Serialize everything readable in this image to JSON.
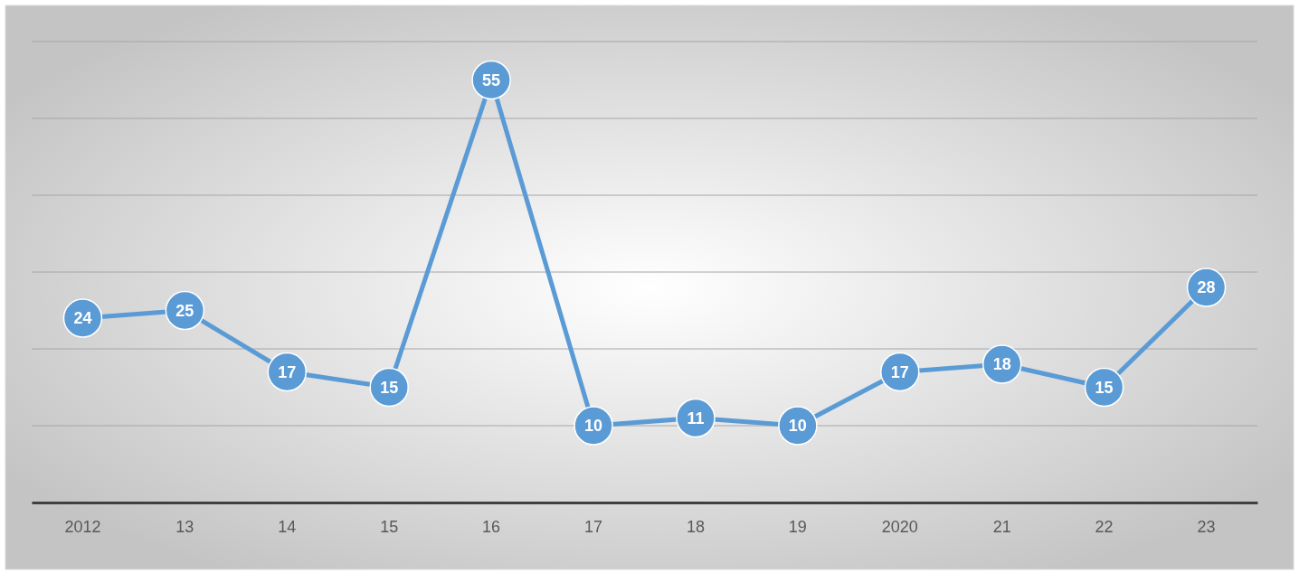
{
  "chart_data": {
    "type": "line",
    "categories": [
      "2012",
      "13",
      "14",
      "15",
      "16",
      "17",
      "18",
      "19",
      "2020",
      "21",
      "22",
      "23"
    ],
    "series": [
      {
        "color": "#5b9bd5",
        "values": [
          24,
          25,
          17,
          15,
          55,
          10,
          11,
          10,
          17,
          18,
          15,
          28
        ]
      }
    ],
    "ylim": [
      0,
      60
    ],
    "yticks": [
      {
        "value": 0,
        "label": null
      },
      {
        "value": 10,
        "label": null
      },
      {
        "value": 20,
        "label": null
      },
      {
        "value": 30,
        "label": null
      },
      {
        "value": 40,
        "label": null
      },
      {
        "value": 50,
        "label": null
      },
      {
        "value": 60,
        "label": null
      }
    ],
    "tick_labels": "x",
    "grid": "y",
    "marker": "circle",
    "line_style": "solid",
    "data_labels": true
  }
}
